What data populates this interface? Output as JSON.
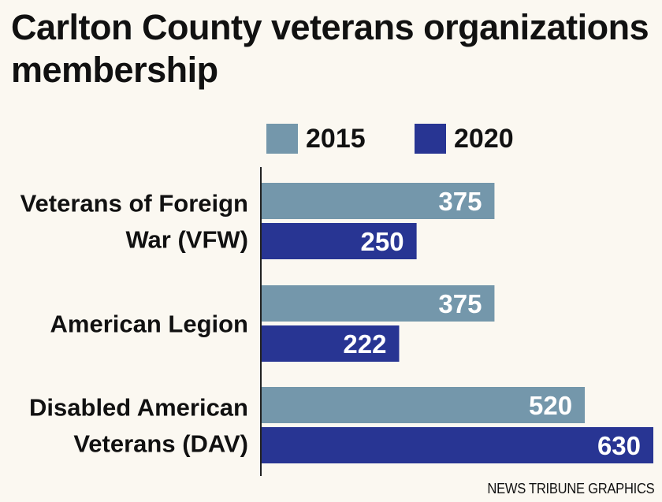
{
  "chart_data": {
    "type": "bar",
    "orientation": "horizontal",
    "title": "Carlton County veterans organizations membership",
    "categories": [
      [
        "Veterans of Foreign",
        "War (VFW)"
      ],
      [
        "American Legion"
      ],
      [
        "Disabled American",
        "Veterans (DAV)"
      ]
    ],
    "series": [
      {
        "name": "2015",
        "color": "#7497ab",
        "values": [
          375,
          375,
          520
        ]
      },
      {
        "name": "2020",
        "color": "#283593",
        "values": [
          250,
          222,
          630
        ]
      }
    ],
    "xlim": [
      0,
      630
    ],
    "grid": false,
    "legend_position": "top",
    "data_labels": true
  },
  "credit": "NEWS TRIBUNE GRAPHICS"
}
